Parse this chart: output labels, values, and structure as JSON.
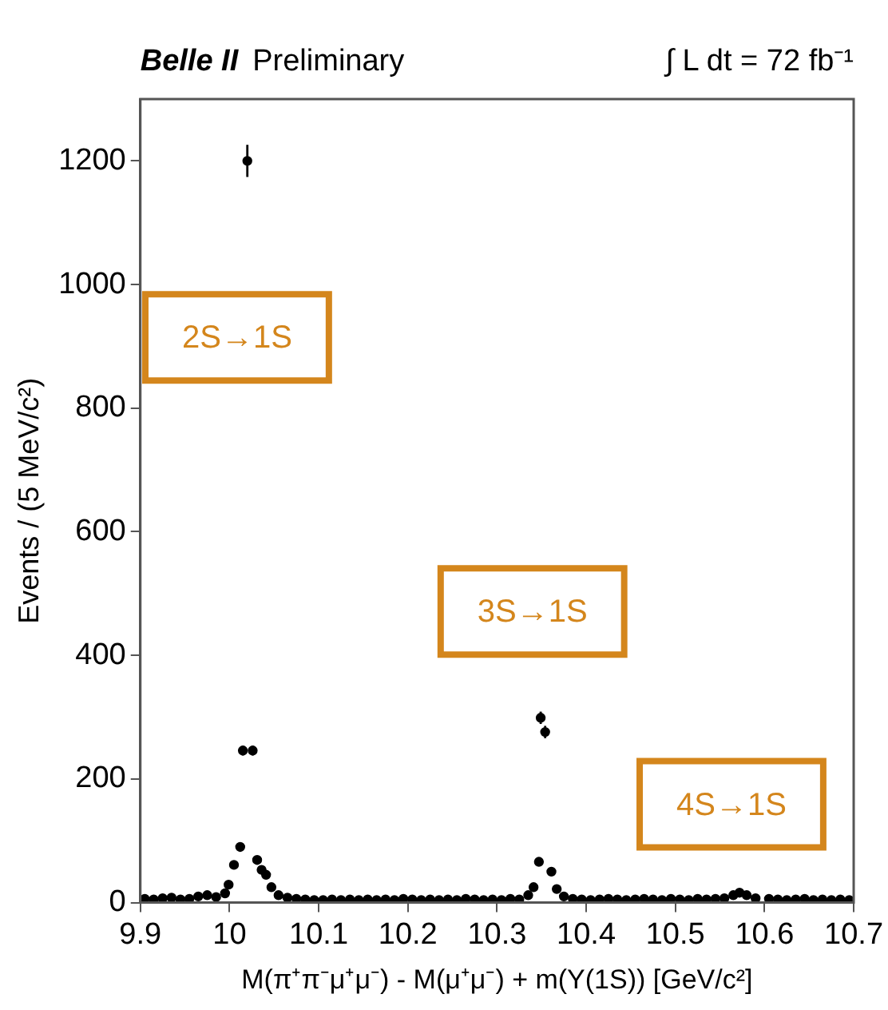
{
  "chart_data": {
    "type": "scatter",
    "title": "Belle II",
    "subtitle": "Preliminary",
    "xlabel": "M(π⁺π⁻μ⁺μ⁻) - M(μ⁺μ⁻) + m(Υ(1S)) [GeV/c²]",
    "ylabel": "Events / (5 MeV/c²)",
    "xlim": [
      9.9,
      10.7
    ],
    "xticks": [
      9.9,
      10,
      10.1,
      10.2,
      10.3,
      10.4,
      10.5,
      10.6,
      10.7
    ],
    "ylim": [
      0,
      1300
    ],
    "yticks": [
      0,
      200,
      400,
      600,
      800,
      1000,
      1200
    ],
    "grid": false,
    "legend": false,
    "marker": "circle",
    "series": [
      {
        "color": "#000000",
        "x": [
          9.905,
          9.915,
          9.925,
          9.935,
          9.945,
          9.955,
          9.965,
          9.975,
          9.985,
          9.995,
          9.999,
          10.005,
          10.012,
          10.015,
          10.02,
          10.026,
          10.031,
          10.036,
          10.041,
          10.047,
          10.055,
          10.065,
          10.075,
          10.085,
          10.095,
          10.105,
          10.115,
          10.125,
          10.135,
          10.145,
          10.155,
          10.165,
          10.175,
          10.185,
          10.195,
          10.205,
          10.215,
          10.225,
          10.235,
          10.245,
          10.255,
          10.265,
          10.275,
          10.285,
          10.295,
          10.305,
          10.315,
          10.325,
          10.335,
          10.341,
          10.347,
          10.349,
          10.354,
          10.361,
          10.367,
          10.375,
          10.385,
          10.395,
          10.405,
          10.415,
          10.425,
          10.435,
          10.445,
          10.455,
          10.465,
          10.475,
          10.485,
          10.495,
          10.505,
          10.515,
          10.525,
          10.535,
          10.545,
          10.555,
          10.565,
          10.572,
          10.58,
          10.59,
          10.605,
          10.615,
          10.625,
          10.635,
          10.645,
          10.655,
          10.665,
          10.675,
          10.685,
          10.695
        ],
        "values": [
          6,
          5,
          7,
          8,
          5,
          6,
          10,
          12,
          9,
          15,
          29,
          61,
          90,
          246,
          1200,
          246,
          69,
          53,
          45,
          25,
          12,
          8,
          6,
          5,
          4,
          4,
          5,
          4,
          5,
          4,
          5,
          4,
          5,
          4,
          6,
          5,
          4,
          5,
          4,
          5,
          4,
          6,
          5,
          4,
          5,
          4,
          6,
          5,
          12,
          25,
          66,
          299,
          276,
          50,
          22,
          10,
          6,
          5,
          4,
          5,
          6,
          5,
          4,
          5,
          6,
          5,
          4,
          6,
          5,
          4,
          6,
          5,
          6,
          7,
          12,
          16,
          12,
          7,
          6,
          5,
          4,
          5,
          6,
          4,
          5,
          4,
          5,
          4
        ],
        "errors": [
          null,
          null,
          null,
          null,
          null,
          null,
          null,
          null,
          null,
          null,
          null,
          null,
          null,
          8,
          26,
          8,
          null,
          null,
          null,
          null,
          null,
          null,
          null,
          null,
          null,
          null,
          null,
          null,
          null,
          null,
          null,
          null,
          null,
          null,
          null,
          null,
          null,
          null,
          null,
          null,
          null,
          null,
          null,
          null,
          null,
          null,
          null,
          null,
          null,
          null,
          null,
          10,
          10,
          null,
          null,
          null,
          null,
          null,
          null,
          null,
          null,
          null,
          null,
          null,
          null,
          null,
          null,
          null,
          null,
          null,
          null,
          null,
          null,
          null,
          null,
          null,
          null,
          null,
          null,
          null,
          null,
          null,
          null,
          null,
          null,
          null,
          null,
          null
        ]
      }
    ],
    "annotations": [
      "∫ L dt = 72 fb⁻¹",
      "2S→1S",
      "3S→1S",
      "4S→1S"
    ]
  }
}
